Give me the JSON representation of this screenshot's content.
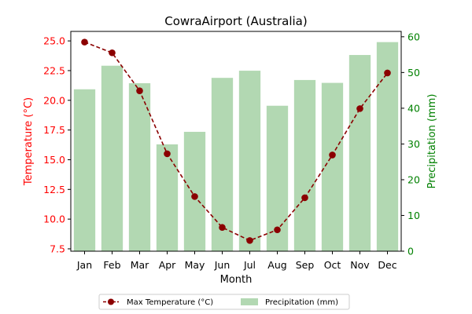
{
  "chart_data": {
    "type": "bar+line",
    "title": "CowraAirport (Australia)",
    "xlabel": "Month",
    "categories": [
      "Jan",
      "Feb",
      "Mar",
      "Apr",
      "May",
      "Jun",
      "Jul",
      "Aug",
      "Sep",
      "Oct",
      "Nov",
      "Dec"
    ],
    "series": [
      {
        "name": "Max Temperature (°C)",
        "type": "line",
        "axis": "left",
        "values": [
          24.9,
          24.0,
          20.8,
          15.5,
          11.9,
          9.3,
          8.2,
          9.1,
          11.8,
          15.4,
          19.3,
          22.3
        ],
        "color": "#8b0000"
      },
      {
        "name": "Precipitation (mm)",
        "type": "bar",
        "axis": "right",
        "values": [
          45.3,
          51.9,
          47.0,
          29.9,
          33.4,
          48.5,
          50.5,
          40.7,
          47.9,
          47.1,
          54.9,
          58.5
        ],
        "color": "#b2d8b2"
      }
    ],
    "left_axis": {
      "label": "Temperature (°C)",
      "color": "#ff0000",
      "ylim": [
        7.3,
        25.8
      ],
      "ticks": [
        "7.5",
        "10.0",
        "12.5",
        "15.0",
        "17.5",
        "20.0",
        "22.5",
        "25.0"
      ]
    },
    "right_axis": {
      "label": "Precipitation (mm)",
      "color": "#008000",
      "ylim": [
        0,
        61.5
      ],
      "ticks": [
        "0",
        "10",
        "20",
        "30",
        "40",
        "50",
        "60"
      ]
    },
    "grid": false,
    "legend_placement": "bottom-center"
  }
}
